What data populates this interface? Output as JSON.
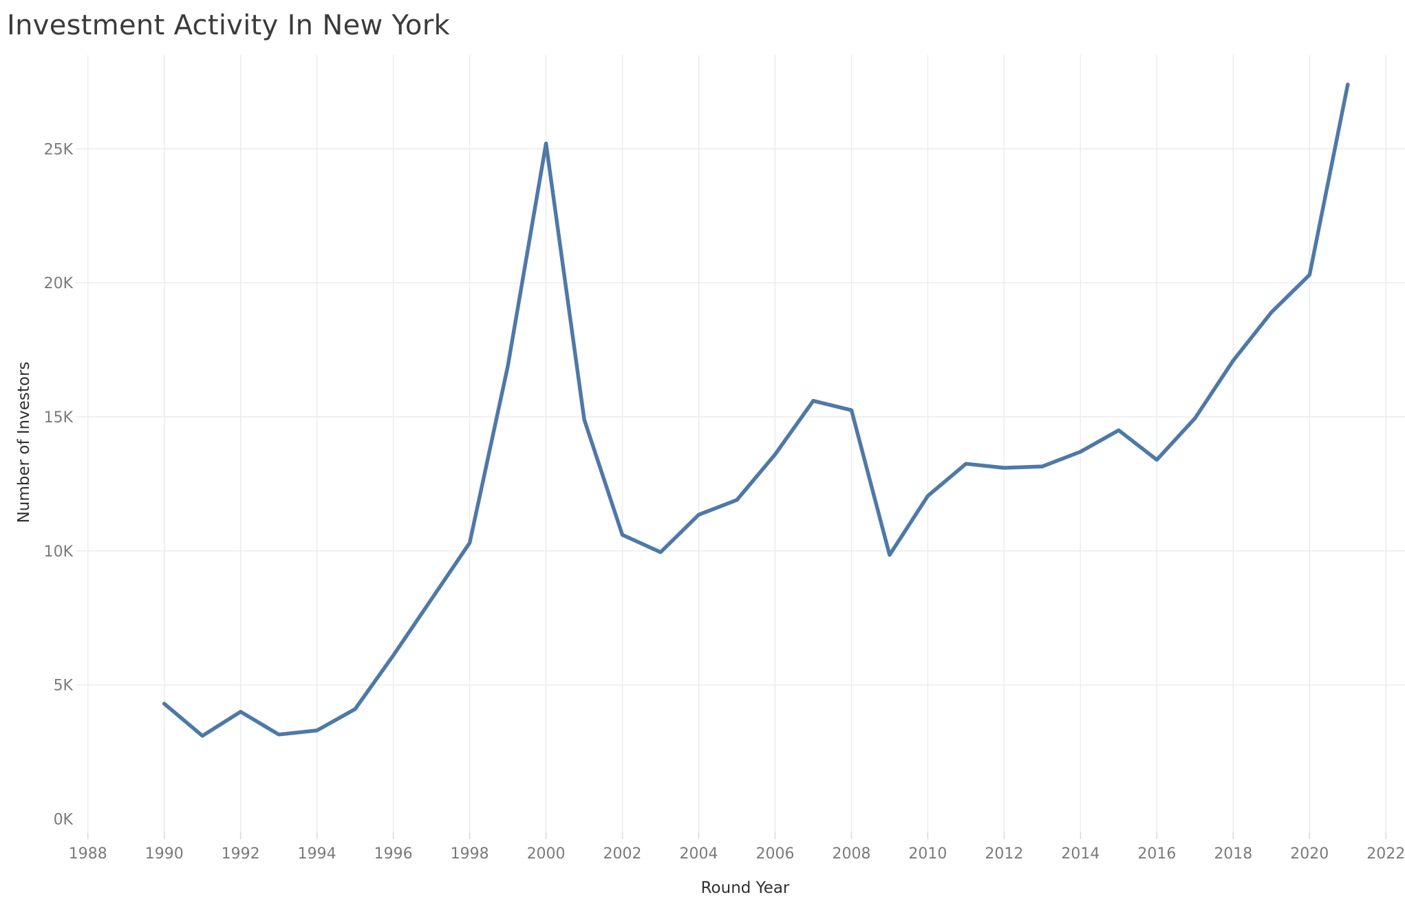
{
  "chart_data": {
    "type": "line",
    "title": "Investment Activity In New York",
    "xlabel": "Round Year",
    "ylabel": "Number of Investors",
    "x": [
      1990,
      1991,
      1992,
      1993,
      1994,
      1995,
      1996,
      1997,
      1998,
      1999,
      2000,
      2001,
      2002,
      2003,
      2004,
      2005,
      2006,
      2007,
      2008,
      2009,
      2010,
      2011,
      2012,
      2013,
      2014,
      2015,
      2016,
      2017,
      2018,
      2019,
      2020,
      2021
    ],
    "series": [
      {
        "color": "#4e79a7",
        "values": [
          4300,
          3100,
          4000,
          3150,
          3300,
          4100,
          6100,
          8200,
          10300,
          16900,
          25200,
          14900,
          10600,
          9950,
          11350,
          11900,
          13600,
          15600,
          15250,
          9850,
          12050,
          13250,
          13100,
          13150,
          13700,
          14500,
          13400,
          14950,
          17100,
          18900,
          20300,
          27400
        ]
      }
    ],
    "xlim": [
      1987.5,
      2022.5
    ],
    "ylim": [
      -500,
      28500
    ],
    "x_ticks": [
      "1988",
      "1990",
      "1992",
      "1994",
      "1996",
      "1998",
      "2000",
      "2002",
      "2004",
      "2006",
      "2008",
      "2010",
      "2012",
      "2014",
      "2016",
      "2018",
      "2020",
      "2022"
    ],
    "y_ticks": [
      "0K",
      "5K",
      "10K",
      "15K",
      "20K",
      "25K"
    ],
    "grid": true,
    "legend": "none"
  }
}
